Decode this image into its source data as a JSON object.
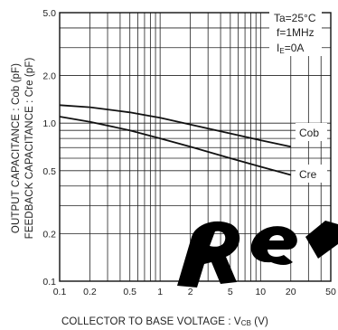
{
  "chart_data": {
    "type": "line",
    "title": "",
    "xlabel": "COLLECTOR  TO BASE VOLTAGE : V",
    "xlabel_sub": "CB",
    "xlabel_unit": " (V)",
    "ylabel_outer": "OUTPUT CAPACITANCE : Cob (pF)",
    "ylabel_inner": "FEEDBACK CAPACITANCE : Cre (pF)",
    "x_scale": "log",
    "y_scale": "log",
    "xlim": [
      0.1,
      50
    ],
    "ylim": [
      0.1,
      5.0
    ],
    "x_ticks": [
      0.1,
      0.2,
      0.5,
      1,
      2,
      5,
      10,
      20,
      50
    ],
    "x_tick_labels": [
      "0.1",
      "0.2",
      "0.5",
      "1",
      "2",
      "5",
      "10",
      "20",
      "50"
    ],
    "y_ticks": [
      0.1,
      0.2,
      0.5,
      1.0,
      2.0,
      5.0
    ],
    "y_tick_labels": [
      "0.1",
      "0.2",
      "0.5",
      "1.0",
      "2.0",
      "5.0"
    ],
    "grid": true,
    "conditions": [
      "Ta=25°C",
      "f=1MHz",
      "I",
      "=0A"
    ],
    "conditions_sub": "E",
    "series": [
      {
        "name": "Cob",
        "x": [
          0.1,
          0.2,
          0.5,
          1,
          2,
          5,
          10,
          20
        ],
        "y": [
          1.3,
          1.26,
          1.17,
          1.08,
          0.98,
          0.86,
          0.78,
          0.71
        ]
      },
      {
        "name": "Cre",
        "x": [
          0.1,
          0.2,
          0.5,
          1,
          2,
          5,
          10,
          20
        ],
        "y": [
          1.1,
          1.02,
          0.9,
          0.8,
          0.71,
          0.6,
          0.53,
          0.47
        ]
      }
    ]
  },
  "watermark_text": "Re",
  "colors": {
    "grid": "#222222",
    "line": "#111111",
    "watermark": "#000000"
  }
}
